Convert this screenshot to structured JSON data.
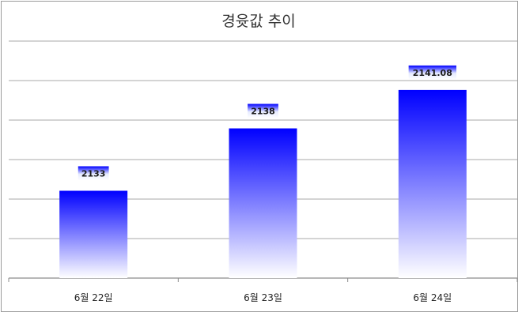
{
  "chart_data": {
    "type": "bar",
    "title": "경윳값 추이",
    "categories": [
      "6월 22일",
      "6월 23일",
      "6월 24일"
    ],
    "values": [
      2133,
      2138,
      2141.08
    ],
    "data_labels": [
      "2133",
      "2138",
      "2141.08"
    ],
    "xlabel": "",
    "ylabel": "",
    "ylim": [
      2126,
      2145
    ],
    "grid": true,
    "legend": "none",
    "colors": {
      "bar_top": "#0000ff",
      "bar_bottom": "#ffffff",
      "grid": "#8c8c8c",
      "label_bg": "#c9d4ff"
    }
  }
}
